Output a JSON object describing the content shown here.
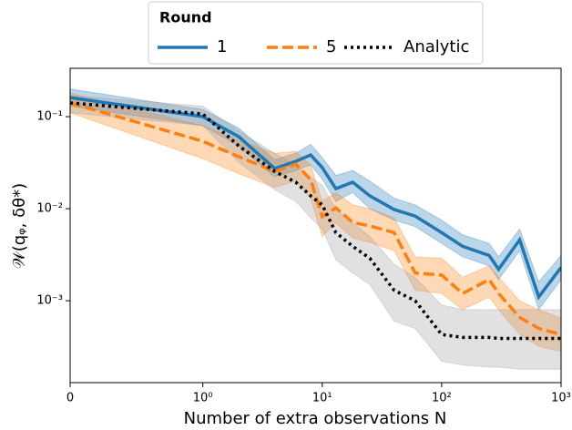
{
  "chart_data": {
    "type": "line",
    "x_label": "Number of extra observations N",
    "y_label": "𝒲(qᵩ, δθ*)",
    "legend_title": "Round",
    "legend_position": "upper center",
    "xscale": "symlog",
    "yscale": "log",
    "xlim": [
      0,
      1000
    ],
    "ylim": [
      0.000129,
      0.335
    ],
    "xticks": [
      0,
      {
        "value": 1,
        "label": "10⁰"
      },
      {
        "value": 10,
        "label": "10¹"
      },
      {
        "value": 100,
        "label": "10²"
      },
      {
        "value": 1000,
        "label": "10³"
      }
    ],
    "yticks": [
      {
        "value": 0.001,
        "label": "10⁻³"
      },
      {
        "value": 0.01,
        "label": "10⁻²"
      },
      {
        "value": 0.1,
        "label": "10⁻¹"
      }
    ],
    "x": [
      0,
      1,
      2,
      4,
      6,
      8,
      10,
      13,
      18,
      25,
      40,
      60,
      100,
      150,
      250,
      300,
      450,
      650,
      1000
    ],
    "series": [
      {
        "name": "1",
        "color": "#1f77b4",
        "dash": "solid",
        "band_color": "#1f77b4",
        "values": [
          0.161,
          0.1,
          0.0605,
          0.0273,
          0.0327,
          0.0384,
          0.028,
          0.0165,
          0.0194,
          0.0138,
          0.0098,
          0.0083,
          0.0055,
          0.0039,
          0.0031,
          0.0022,
          0.0046,
          0.0011,
          0.0023
        ],
        "upper": [
          0.2,
          0.12,
          0.075,
          0.034,
          0.04,
          0.05,
          0.036,
          0.023,
          0.026,
          0.02,
          0.013,
          0.011,
          0.0075,
          0.0052,
          0.0042,
          0.003,
          0.006,
          0.0016,
          0.0031
        ],
        "lower": [
          0.13,
          0.08,
          0.048,
          0.022,
          0.026,
          0.03,
          0.021,
          0.012,
          0.015,
          0.01,
          0.0075,
          0.0064,
          0.0042,
          0.003,
          0.0024,
          0.0017,
          0.0035,
          0.0008,
          0.0017
        ]
      },
      {
        "name": "5",
        "color": "#ff7f0e",
        "dash": "dashed",
        "band_color": "#ff7f0e",
        "values": [
          0.141,
          0.054,
          0.0367,
          0.0254,
          0.0305,
          0.0207,
          0.0082,
          0.0102,
          0.0071,
          0.0065,
          0.0055,
          0.002,
          0.0019,
          0.0012,
          0.0017,
          0.0012,
          0.00066,
          0.0005,
          0.00043
        ],
        "upper": [
          0.18,
          0.08,
          0.055,
          0.04,
          0.042,
          0.03,
          0.012,
          0.015,
          0.011,
          0.01,
          0.008,
          0.003,
          0.0029,
          0.0018,
          0.0024,
          0.0018,
          0.001,
          0.0008,
          0.00065
        ],
        "lower": [
          0.11,
          0.035,
          0.024,
          0.017,
          0.02,
          0.013,
          0.005,
          0.007,
          0.0048,
          0.0043,
          0.0035,
          0.0013,
          0.0012,
          0.0008,
          0.0011,
          0.0008,
          0.00043,
          0.00032,
          0.00028
        ]
      },
      {
        "name": "Analytic",
        "color": "#000000",
        "dash": "dotted",
        "band_color": "#9a9a9a",
        "values": [
          0.141,
          0.107,
          0.048,
          0.0254,
          0.0194,
          0.0138,
          0.011,
          0.0055,
          0.0039,
          0.0029,
          0.0013,
          0.001,
          0.00043,
          0.0004,
          0.0004,
          0.00039,
          0.00039,
          0.00039,
          0.00039
        ],
        "upper": [
          0.17,
          0.13,
          0.07,
          0.04,
          0.03,
          0.022,
          0.018,
          0.01,
          0.007,
          0.005,
          0.0025,
          0.0018,
          0.0009,
          0.0008,
          0.0008,
          0.0008,
          0.0008,
          0.0008,
          0.0008
        ],
        "lower": [
          0.11,
          0.08,
          0.032,
          0.016,
          0.012,
          0.008,
          0.006,
          0.0028,
          0.002,
          0.0015,
          0.0006,
          0.0005,
          0.00022,
          0.0002,
          0.00019,
          0.00019,
          0.00018,
          0.00018,
          0.00018
        ]
      }
    ]
  }
}
